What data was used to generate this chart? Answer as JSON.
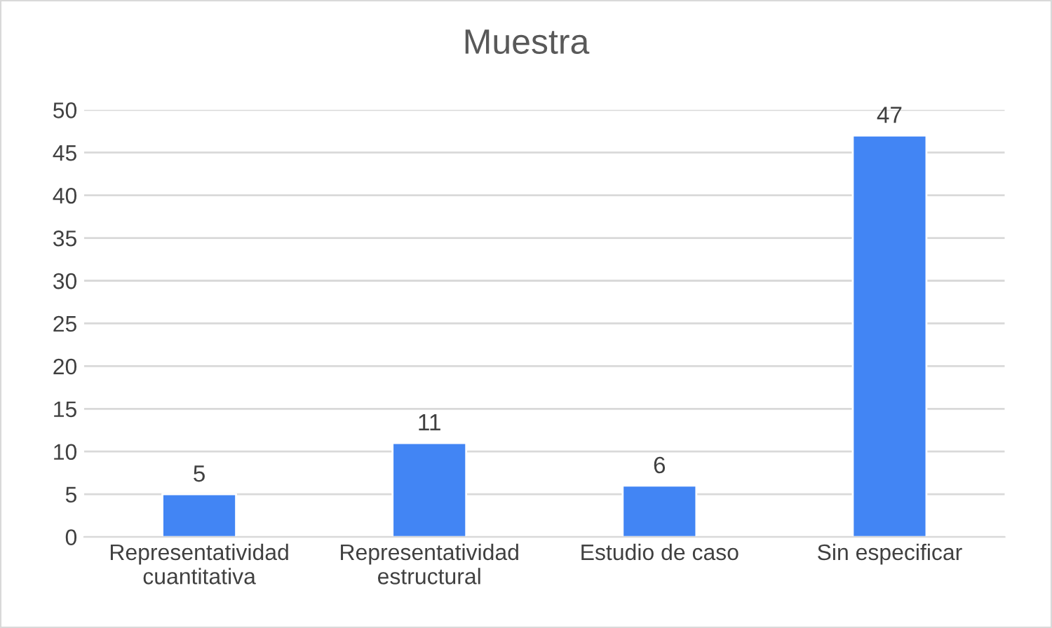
{
  "chart_data": {
    "type": "bar",
    "title": "Muestra",
    "categories": [
      "Representatividad\ncuantitativa",
      "Representatividad\nestructural",
      "Estudio de caso",
      "Sin especificar"
    ],
    "values": [
      5,
      11,
      6,
      47
    ],
    "color": "#4285f4",
    "ylim": [
      0,
      50
    ],
    "yticks": [
      0,
      5,
      10,
      15,
      20,
      25,
      30,
      35,
      40,
      45,
      50
    ],
    "grid": "y",
    "legend": false,
    "data_labels": true
  }
}
